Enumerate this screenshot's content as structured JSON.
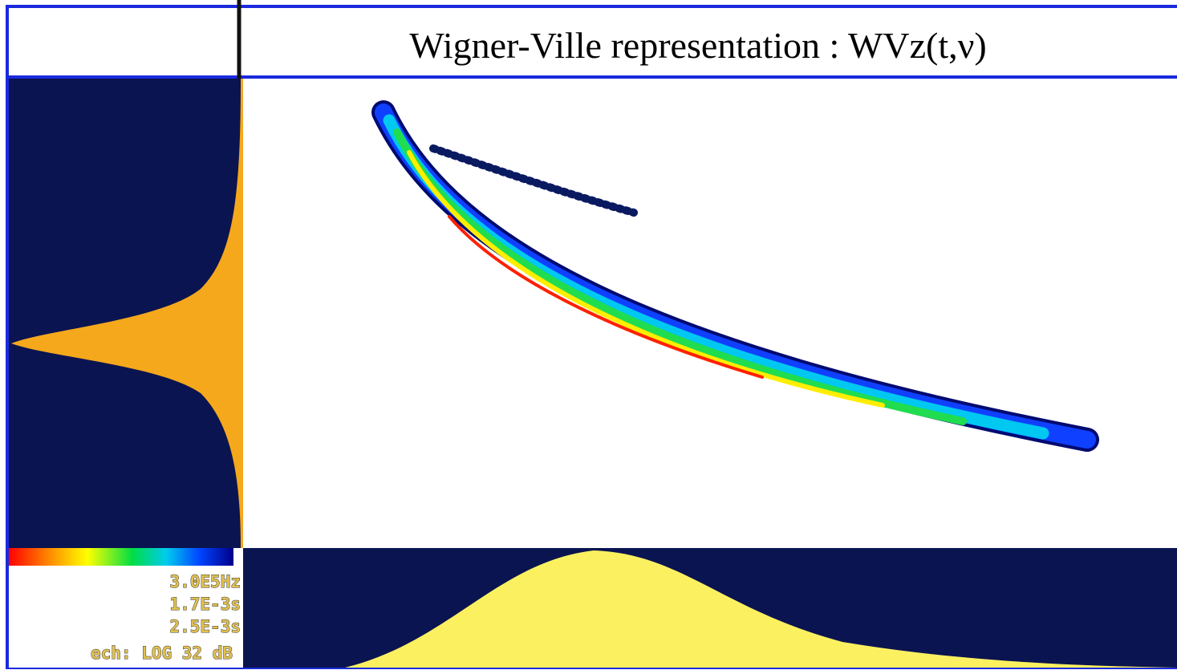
{
  "header": {
    "title": "Wigner-Ville representation : WVz(t,ν)"
  },
  "info": {
    "labels": [
      "3.0E5Hz",
      "1.7E-3s",
      "2.5E-3s"
    ],
    "scale": "ech: LOG 32 dB"
  }
}
